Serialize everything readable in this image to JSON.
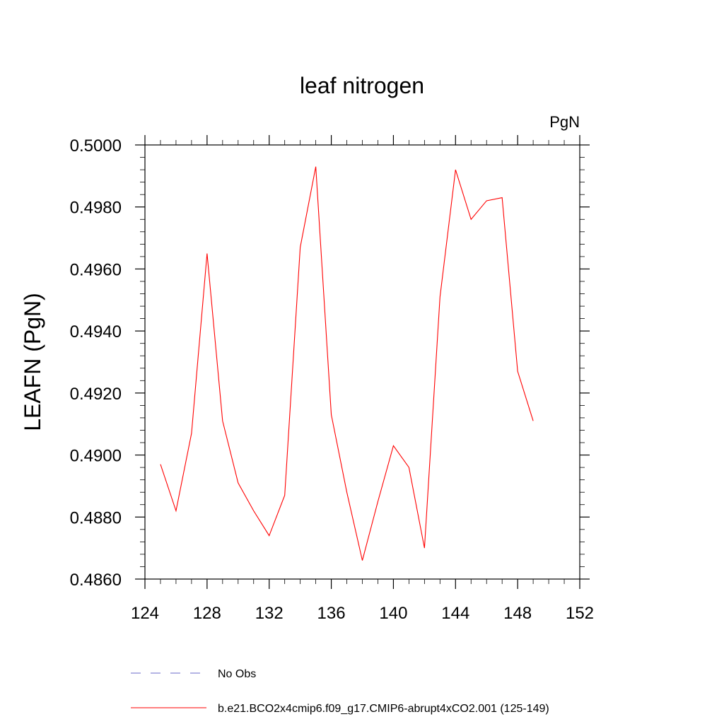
{
  "chart_data": {
    "type": "line",
    "title": "leaf nitrogen",
    "units_label": "PgN",
    "ylabel": "LEAFN  (PgN)",
    "xlabel": "",
    "xlim": [
      124,
      152
    ],
    "ylim": [
      0.486,
      0.5
    ],
    "x_ticks": [
      124,
      128,
      132,
      136,
      140,
      144,
      148,
      152
    ],
    "x_tick_labels": [
      "124",
      "128",
      "132",
      "136",
      "140",
      "144",
      "148",
      "152"
    ],
    "y_ticks": [
      0.486,
      0.488,
      0.49,
      0.492,
      0.494,
      0.496,
      0.498,
      0.5
    ],
    "y_tick_labels": [
      "0.4860",
      "0.4880",
      "0.4900",
      "0.4920",
      "0.4940",
      "0.4960",
      "0.4980",
      "0.5000"
    ],
    "grid": false,
    "legend_position": "bottom",
    "series": [
      {
        "name": "b.e21.BCO2x4cmip6.f09_g17.CMIP6-abrupt4xCO2.001 (125-149)",
        "color": "#ff0000",
        "style": "solid",
        "x": [
          125,
          126,
          127,
          128,
          129,
          130,
          131,
          132,
          133,
          134,
          135,
          136,
          137,
          138,
          139,
          140,
          141,
          142,
          143,
          144,
          145,
          146,
          147,
          148,
          149
        ],
        "y": [
          0.4897,
          0.4882,
          0.4907,
          0.4965,
          0.4911,
          0.4891,
          0.4882,
          0.4874,
          0.4887,
          0.4967,
          0.4993,
          0.4913,
          0.4888,
          0.4866,
          0.4885,
          0.4903,
          0.4896,
          0.487,
          0.4951,
          0.4992,
          0.4976,
          0.4982,
          0.4983,
          0.4927,
          0.4911
        ]
      }
    ],
    "legend": [
      {
        "label": "No Obs",
        "color": "#6a6ac8",
        "style": "dashed"
      },
      {
        "label": "b.e21.BCO2x4cmip6.f09_g17.CMIP6-abrupt4xCO2.001 (125-149)",
        "color": "#ff0000",
        "style": "solid"
      }
    ]
  }
}
